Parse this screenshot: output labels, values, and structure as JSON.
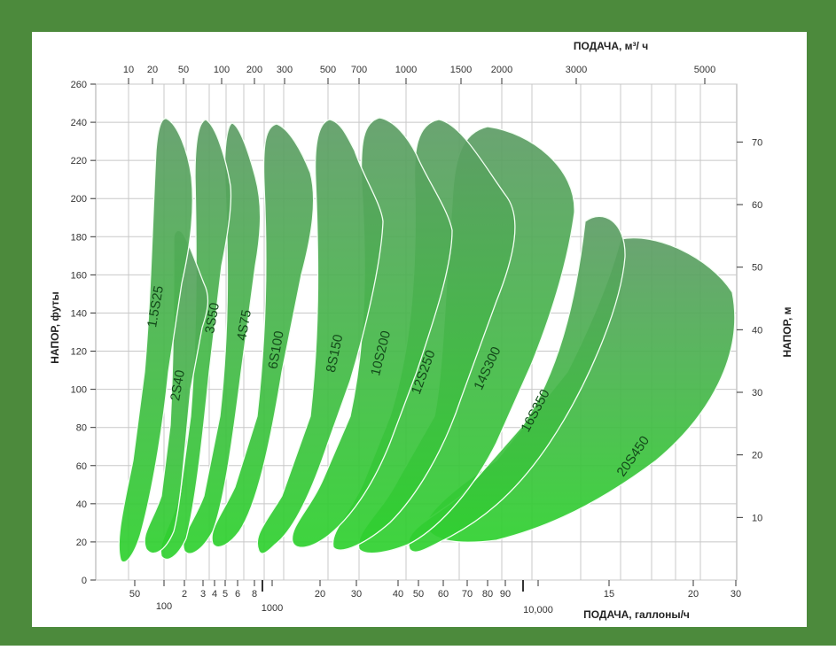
{
  "colors": {
    "frame": "#4c8a3c",
    "inner_background": "#ffffff",
    "grid": "#c8c8c8",
    "axis": "#333333",
    "zone_outline": "#f2fff2",
    "zone_fill_top": "#5e9c66",
    "zone_fill_bottom": "#2ed12e"
  },
  "chart_data": {
    "type": "area",
    "description_visible": false,
    "top_axis": {
      "label": "ПОДАЧА, м³/ ч",
      "ticks": [
        "10",
        "20",
        "50",
        "100",
        "200",
        "300",
        "500",
        "700",
        "1000",
        "1500",
        "2000",
        "3000",
        "5000"
      ],
      "scale": "log"
    },
    "bottom_axis": {
      "label": "ПОДАЧА, галлоны/ч",
      "ticks": [
        "50",
        "100",
        "2",
        "3",
        "4",
        "5",
        "6",
        "8",
        "1000",
        "20",
        "30",
        "40",
        "50",
        "60",
        "70",
        "80",
        "90",
        "10,000",
        "15",
        "20",
        "30"
      ],
      "scale": "log"
    },
    "left_axis": {
      "label": "НАПОР, футы",
      "ticks": [
        0,
        20,
        40,
        60,
        80,
        100,
        120,
        140,
        160,
        180,
        200,
        220,
        240,
        260
      ],
      "ylim": [
        0,
        260
      ]
    },
    "right_axis": {
      "label": "НАПОР, м",
      "ticks": [
        10,
        20,
        30,
        40,
        50,
        60,
        70
      ]
    },
    "grid": true,
    "zones": [
      {
        "name": "1.5S25"
      },
      {
        "name": "2S40"
      },
      {
        "name": "3S50"
      },
      {
        "name": "4S75"
      },
      {
        "name": "6S100"
      },
      {
        "name": "8S150"
      },
      {
        "name": "10S200"
      },
      {
        "name": "12S250"
      },
      {
        "name": "14S300"
      },
      {
        "name": "16S350"
      },
      {
        "name": "20S450"
      }
    ]
  }
}
